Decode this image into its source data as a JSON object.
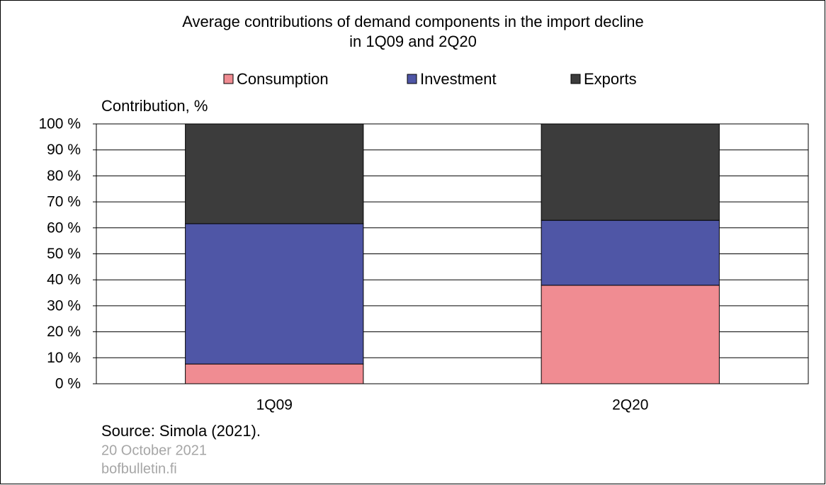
{
  "chart_data": {
    "type": "stacked-bar",
    "title": [
      "Average contributions of demand components in the import decline",
      "in 1Q09 and 2Q20"
    ],
    "ylabel": "Contribution, %",
    "categories": [
      "1Q09",
      "2Q20"
    ],
    "series": [
      {
        "name": "Consumption",
        "color": "#f08c92",
        "values": [
          7.6,
          37.9
        ]
      },
      {
        "name": "Investment",
        "color": "#4f56a6",
        "values": [
          54.0,
          25.0
        ]
      },
      {
        "name": "Exports",
        "color": "#3c3c3c",
        "values": [
          38.4,
          37.1
        ]
      }
    ],
    "ylim": [
      0,
      100
    ],
    "yticks": [
      {
        "value": 0,
        "label": "0 %"
      },
      {
        "value": 10,
        "label": "10 %"
      },
      {
        "value": 20,
        "label": "20 %"
      },
      {
        "value": 30,
        "label": "30 %"
      },
      {
        "value": 40,
        "label": "40 %"
      },
      {
        "value": 50,
        "label": "50 %"
      },
      {
        "value": 60,
        "label": "60 %"
      },
      {
        "value": 70,
        "label": "70 %"
      },
      {
        "value": 80,
        "label": "80 %"
      },
      {
        "value": 90,
        "label": "90 %"
      },
      {
        "value": 100,
        "label": "100 %"
      }
    ],
    "grid": true,
    "legend": "top",
    "source": "Source: Simola (2021).",
    "date": "20 October 2021",
    "site": "bofbulletin.fi"
  }
}
